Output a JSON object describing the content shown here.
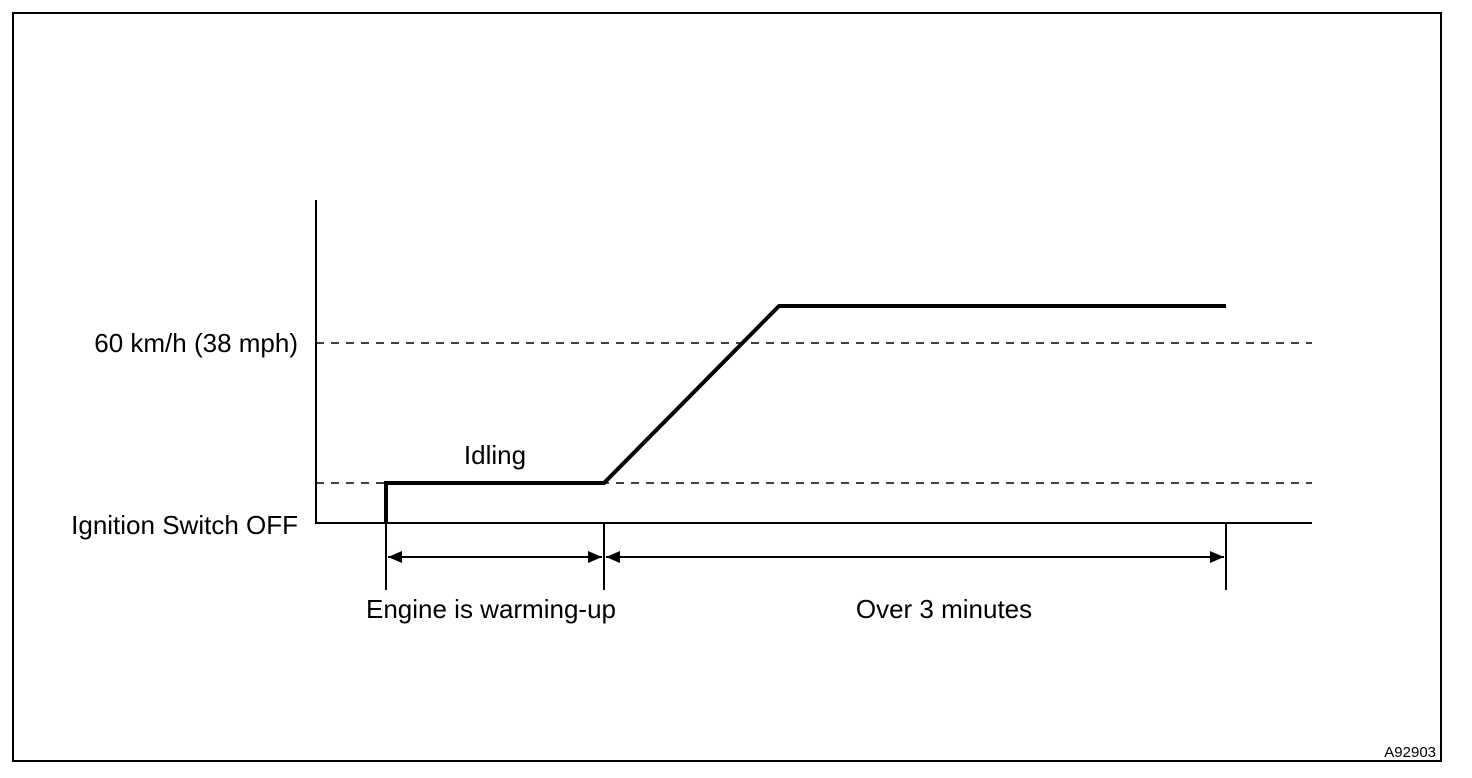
{
  "diagram": {
    "y_axis_labels": {
      "speed_threshold": "60 km/h (38 mph)",
      "ignition_off": "Ignition Switch OFF"
    },
    "annotations": {
      "idling": "Idling",
      "phase_warming": "Engine is warming-up",
      "phase_drive": "Over 3 minutes"
    },
    "figure_code": "A92903"
  }
}
